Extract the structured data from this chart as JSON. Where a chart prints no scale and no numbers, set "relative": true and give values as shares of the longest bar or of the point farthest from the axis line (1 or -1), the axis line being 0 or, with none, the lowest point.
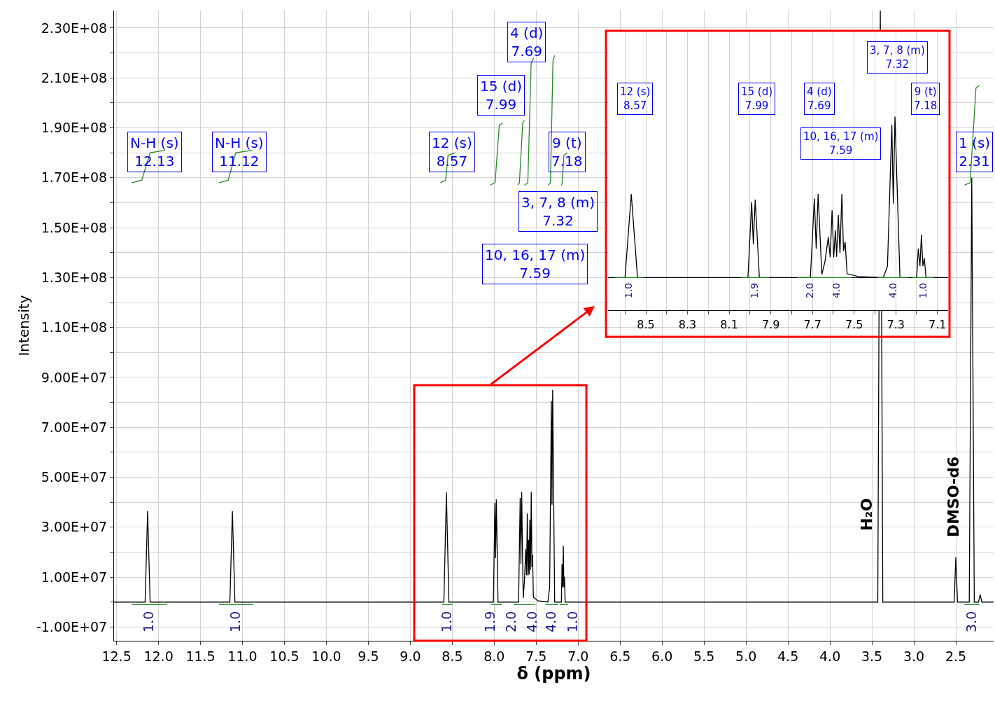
{
  "chart_data": [
    {
      "type": "line",
      "xlabel": "δ (ppm)",
      "ylabel": "Intensity",
      "xlim": [
        12.53,
        2.05
      ],
      "ylim": [
        -15500000,
        237000000
      ],
      "xticks": [
        12.5,
        {
          "value": 12,
          "label": "12.0"
        },
        11.5,
        {
          "value": 11,
          "label": "11.0"
        },
        10.5,
        {
          "value": 10,
          "label": "10.0"
        },
        9.5,
        {
          "value": 9,
          "label": "9.0"
        },
        8.5,
        {
          "value": 8,
          "label": "8.0"
        },
        7.5,
        {
          "value": 7,
          "label": "7.0"
        },
        6.5,
        {
          "value": 6,
          "label": "6.0"
        },
        5.5,
        {
          "value": 5,
          "label": "5.0"
        },
        4.5,
        {
          "value": 4,
          "label": "4.0"
        },
        3.5,
        {
          "value": 3,
          "label": "3.0"
        },
        2.5
      ],
      "yticks": [
        {
          "value": -10000000,
          "label": "-1.00E+07"
        },
        {
          "value": 0,
          "label": null
        },
        {
          "value": 10000000,
          "label": "1.00E+07"
        },
        {
          "value": 20000000,
          "label": null
        },
        {
          "value": 30000000,
          "label": "3.00E+07"
        },
        {
          "value": 40000000,
          "label": null
        },
        {
          "value": 50000000,
          "label": "5.00E+07"
        },
        {
          "value": 60000000,
          "label": null
        },
        {
          "value": 70000000,
          "label": "7.00E+07"
        },
        {
          "value": 80000000,
          "label": null
        },
        {
          "value": 90000000,
          "label": "9.00E+07"
        },
        {
          "value": 100000000,
          "label": null
        },
        {
          "value": 110000000,
          "label": "1.10E+08"
        },
        {
          "value": 120000000,
          "label": null
        },
        {
          "value": 130000000,
          "label": "1.30E+08"
        },
        {
          "value": 140000000,
          "label": null
        },
        {
          "value": 150000000,
          "label": "1.50E+08"
        },
        {
          "value": 160000000,
          "label": null
        },
        {
          "value": 170000000,
          "label": "1.70E+08"
        },
        {
          "value": 180000000,
          "label": null
        },
        {
          "value": 190000000,
          "label": "1.90E+08"
        },
        {
          "value": 200000000,
          "label": null
        },
        {
          "value": 210000000,
          "label": "2.10E+08"
        },
        {
          "value": 220000000,
          "label": null
        },
        {
          "value": 230000000,
          "label": "2.30E+08"
        }
      ],
      "grid": true,
      "line_style": "solid",
      "series": [
        {
          "color": "#000000",
          "x": [
            12.53,
            12.16,
            12.13,
            12.1,
            11.15,
            11.12,
            11.09,
            8.6,
            8.57,
            8.54,
            8.01,
            7.992,
            7.984,
            7.975,
            7.955,
            7.71,
            7.691,
            7.682,
            7.673,
            7.655,
            7.64,
            7.624,
            7.615,
            7.606,
            7.598,
            7.59,
            7.584,
            7.576,
            7.568,
            7.559,
            7.551,
            7.543,
            7.534,
            7.48,
            7.36,
            7.34,
            7.319,
            7.312,
            7.304,
            7.28,
            7.2,
            7.192,
            7.184,
            7.177,
            7.17,
            7.163,
            7.155,
            3.43,
            3.4,
            3.37,
            2.52,
            2.5,
            2.48,
            2.34,
            2.31,
            2.28,
            2.23,
            2.21,
            2.19,
            2.05
          ],
          "values": [
            0,
            0,
            36500000,
            0,
            0,
            36500000,
            0,
            0,
            44000000,
            0,
            0,
            39800000,
            17600000,
            41100000,
            0,
            0,
            41700000,
            15200000,
            44100000,
            1600000,
            8500000,
            21300000,
            10800000,
            35500000,
            10600000,
            25000000,
            11000000,
            33000000,
            13000000,
            44100000,
            14000000,
            18900000,
            2000000,
            500000,
            0,
            5900000,
            80600000,
            39000000,
            85000000,
            0,
            0,
            15200000,
            6000000,
            22600000,
            6000000,
            10200000,
            0,
            0,
            237000000,
            0,
            0,
            18000000,
            0,
            0,
            170000000,
            0,
            0,
            3000000,
            0,
            0
          ]
        },
        {
          "color": "#228b22",
          "x": [
            12.32,
            12.2,
            12.1,
            11.92
          ],
          "values": [
            168000000,
            169000000,
            180000000,
            181000000
          ]
        },
        {
          "color": "#228b22",
          "x": [
            11.28,
            11.17,
            11.08,
            10.88
          ],
          "values": [
            168000000,
            169000000,
            180000000,
            181000000
          ]
        },
        {
          "color": "#228b22",
          "x": [
            8.64,
            8.58,
            8.55,
            8.46
          ],
          "values": [
            168000000,
            169000000,
            179000000,
            180000000
          ]
        },
        {
          "color": "#228b22",
          "x": [
            8.05,
            7.99,
            7.94,
            7.9
          ],
          "values": [
            167000000,
            168000000,
            191000000,
            192000000
          ]
        },
        {
          "color": "#228b22",
          "x": [
            7.72,
            7.7,
            7.66,
            7.64
          ],
          "values": [
            167000000,
            168000000,
            192000000,
            193000000
          ]
        },
        {
          "color": "#228b22",
          "x": [
            7.64,
            7.6,
            7.56,
            7.53
          ],
          "values": [
            167000000,
            168000000,
            216000000,
            218000000
          ]
        },
        {
          "color": "#228b22",
          "x": [
            7.36,
            7.33,
            7.3,
            7.28
          ],
          "values": [
            167000000,
            168000000,
            217000000,
            219000000
          ]
        },
        {
          "color": "#228b22",
          "x": [
            7.2,
            7.19,
            7.17,
            7.13
          ],
          "values": [
            167000000,
            168000000,
            179000000,
            180000000
          ]
        },
        {
          "color": "#228b22",
          "x": [
            2.4,
            2.33,
            2.26,
            2.22
          ],
          "values": [
            167000000,
            168000000,
            206000000,
            207000000
          ]
        },
        {
          "color": "#228b22",
          "x": [
            12.32,
            11.9,
            null,
            11.28,
            10.87,
            null,
            8.62,
            8.5,
            null,
            8.04,
            7.91,
            null,
            7.77,
            7.654,
            7.51,
            null,
            7.39,
            7.24,
            null,
            7.22,
            7.12,
            null,
            2.4,
            2.22
          ],
          "values": [
            -1000000,
            -1000000,
            null,
            -1000000,
            -1000000,
            null,
            -1000000,
            -1000000,
            null,
            -1000000,
            -1000000,
            null,
            -1000000,
            -1000000,
            -1000000,
            null,
            -1000000,
            -1000000,
            null,
            -1000000,
            -1000000,
            null,
            -1000000,
            -1000000
          ]
        }
      ],
      "annotations": [
        "N-H (s)\n12.13",
        "N-H (s)\n11.12",
        "12 (s)\n8.57",
        "15 (d)\n7.99",
        "4 (d)\n7.69",
        "9 (t)\n7.18",
        "3, 7, 8 (m)\n7.32",
        "10, 16, 17 (m)\n7.59",
        "1 (s)\n2.31",
        "H₂O",
        "DMSO-d6",
        "1.0",
        "1.0",
        "1.0",
        "1.9",
        "2.0",
        "4.0",
        "4.0",
        "1.0",
        "3.0"
      ]
    },
    {
      "type": "line",
      "relative": true,
      "xlim": [
        8.68,
        7.05
      ],
      "tick_labels": "x",
      "xticks": [
        {
          "value": 8.6,
          "label": null
        },
        8.5,
        {
          "value": 8.4,
          "label": null
        },
        8.3,
        {
          "value": 8.2,
          "label": null
        },
        8.1,
        {
          "value": 8.0,
          "label": null
        },
        7.9,
        {
          "value": 7.8,
          "label": null
        },
        7.7,
        {
          "value": 7.6,
          "label": null
        },
        7.5,
        {
          "value": 7.4,
          "label": null
        },
        7.3,
        {
          "value": 7.2,
          "label": null
        },
        7.1
      ],
      "grid": "x",
      "line_style": "solid",
      "series": [
        {
          "color": "#000000",
          "x": [
            8.68,
            8.6,
            8.57,
            8.54,
            8.01,
            7.992,
            7.984,
            7.975,
            7.955,
            7.71,
            7.691,
            7.682,
            7.673,
            7.655,
            7.64,
            7.624,
            7.615,
            7.606,
            7.598,
            7.59,
            7.584,
            7.576,
            7.568,
            7.559,
            7.551,
            7.543,
            7.534,
            7.48,
            7.36,
            7.34,
            7.319,
            7.312,
            7.304,
            7.28,
            7.2,
            7.192,
            7.184,
            7.177,
            7.17,
            7.163,
            7.155,
            7.05
          ],
          "values": [
            0,
            0,
            0.518,
            0,
            0,
            0.468,
            0.207,
            0.484,
            0,
            0,
            0.491,
            0.179,
            0.519,
            0.019,
            0.1,
            0.251,
            0.127,
            0.418,
            0.125,
            0.294,
            0.129,
            0.388,
            0.153,
            0.519,
            0.165,
            0.222,
            0.024,
            0.006,
            0,
            0.069,
            0.948,
            0.459,
            1,
            0,
            0,
            0.179,
            0.071,
            0.266,
            0.071,
            0.12,
            0,
            0
          ]
        },
        {
          "color": "#228b22",
          "x": [
            8.65,
            8.508,
            null,
            8.04,
            7.908,
            null,
            7.774,
            7.654,
            7.512,
            null,
            7.388,
            7.241,
            null,
            7.22,
            7.12
          ],
          "values": [
            0,
            0,
            null,
            0,
            0,
            null,
            0,
            0,
            0,
            null,
            0,
            0,
            null,
            0,
            0
          ]
        }
      ],
      "annotations": [
        "12 (s)\n8.57",
        "15 (d)\n7.99",
        "4 (d)\n7.69",
        "10, 16, 17 (m)\n7.59",
        "3, 7, 8 (m)\n7.32",
        "9 (t)\n7.18",
        "1.0",
        "1.9",
        "2.0",
        "4.0",
        "4.0",
        "1.0"
      ]
    }
  ]
}
